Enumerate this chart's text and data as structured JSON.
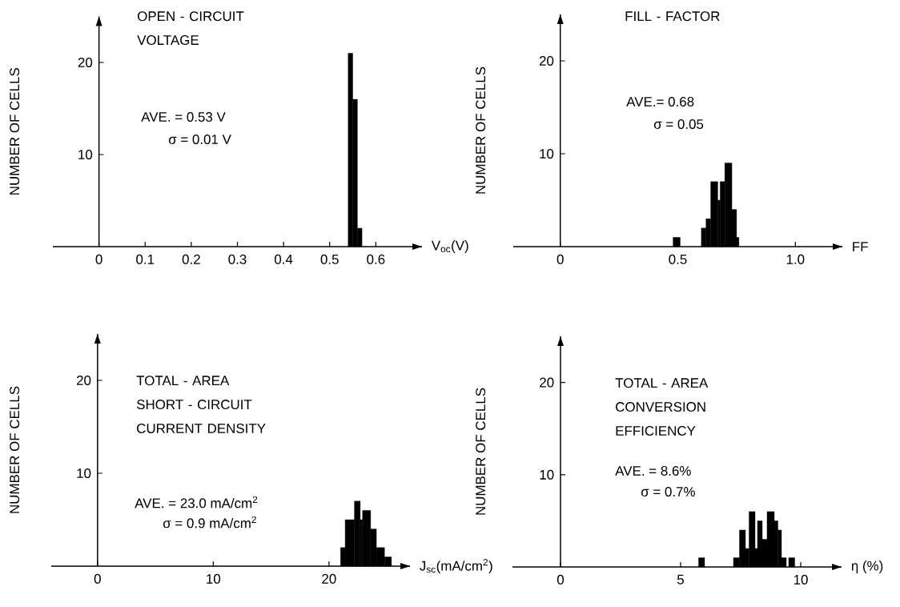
{
  "chart_data": [
    {
      "type": "histogram",
      "title": "OPEN - CIRCUIT VOLTAGE",
      "xlabel": "V$_{oc}$(V)",
      "ylabel": "NUMBER OF CELLS",
      "annotations": [
        "AVE. = 0.53 V",
        "σ = 0.01 V"
      ],
      "bins": [
        0.54,
        0.55,
        0.56,
        0.57
      ],
      "values": [
        21,
        16,
        2
      ],
      "color": "#000000",
      "xlim": [
        -0.1,
        0.7
      ],
      "ylim": [
        0,
        25
      ],
      "xticks": [
        0,
        0.1,
        0.2,
        0.3,
        0.4,
        0.5,
        0.6
      ],
      "yticks": [
        10,
        20
      ]
    },
    {
      "type": "histogram",
      "title": "FILL - FACTOR",
      "xlabel": "FF",
      "ylabel": "NUMBER OF CELLS",
      "annotations": [
        "AVE.= 0.68",
        "σ = 0.05"
      ],
      "bins": [
        0.48,
        0.51,
        0.6,
        0.62,
        0.64,
        0.67,
        0.68,
        0.7,
        0.73,
        0.75,
        0.76
      ],
      "values": [
        1,
        0,
        2,
        3,
        7,
        5,
        7,
        9,
        4,
        1
      ],
      "color": "#000000",
      "xlim": [
        -0.2,
        1.2
      ],
      "ylim": [
        0,
        25
      ],
      "xticks": [
        0,
        0.5,
        {
          "value": 1,
          "label": "1.0"
        }
      ],
      "yticks": [
        10,
        20
      ]
    },
    {
      "type": "histogram",
      "title": "TOTAL - AREA SHORT - CIRCUIT CURRENT DENSITY",
      "xlabel": "J$_{sc}$(mA/cm$^{2}$)",
      "ylabel": "NUMBER OF CELLS",
      "annotations": [
        "AVE. = 23.0 mA/cm$^{2}$",
        "σ = 0.9 mA/cm$^{2}$"
      ],
      "bins": [
        21.0,
        21.4,
        22.2,
        22.7,
        22.9,
        23.6,
        24.1,
        24.8,
        25.4
      ],
      "values": [
        2,
        5,
        7,
        5,
        6,
        4,
        2,
        1
      ],
      "color": "#000000",
      "xlim": [
        -4,
        27
      ],
      "ylim": [
        0,
        25
      ],
      "xticks": [
        0,
        10,
        20
      ],
      "yticks": [
        10,
        20
      ]
    },
    {
      "type": "histogram",
      "title": "TOTAL - AREA CONVERSION EFFICIENCY",
      "xlabel": "η (%)",
      "ylabel": "NUMBER OF CELLS",
      "annotations": [
        "AVE. = 8.6%",
        "σ = 0.7%"
      ],
      "bins": [
        5.75,
        6.0,
        7.2,
        7.45,
        7.7,
        7.85,
        8.1,
        8.2,
        8.4,
        8.6,
        8.9,
        9.05,
        9.2,
        9.4,
        9.5,
        9.75
      ],
      "values": [
        1,
        0,
        1,
        4,
        2,
        6,
        2,
        5,
        3,
        6,
        5,
        4,
        1,
        0,
        1
      ],
      "color": "#000000",
      "xlim": [
        -2,
        11.7
      ],
      "ylim": [
        0,
        25
      ],
      "xticks": [
        0,
        5,
        10
      ],
      "yticks": [
        10,
        20
      ]
    }
  ]
}
